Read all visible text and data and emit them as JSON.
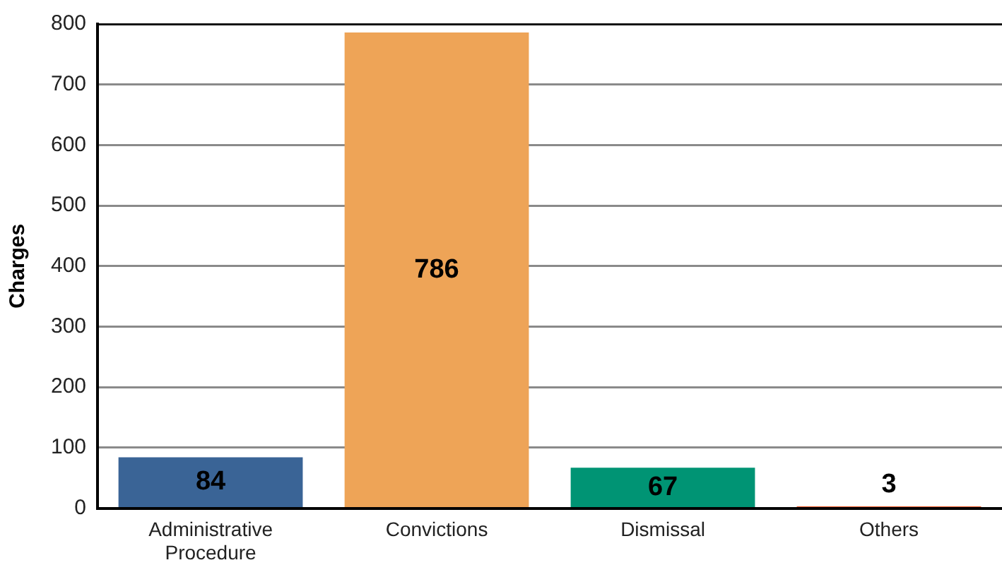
{
  "chart_data": {
    "type": "bar",
    "ylabel": "Charges",
    "categories": [
      "Administrative Procedure",
      "Convictions",
      "Dismissal",
      "Others"
    ],
    "values": [
      84,
      786,
      67,
      3
    ],
    "colors": [
      "#3a6496",
      "#eea457",
      "#009474",
      "#e8521c"
    ],
    "ylim": [
      0,
      800
    ],
    "yticks": [
      0,
      100,
      200,
      300,
      400,
      500,
      600,
      700,
      800
    ],
    "grid": "y",
    "data_labels": true
  }
}
